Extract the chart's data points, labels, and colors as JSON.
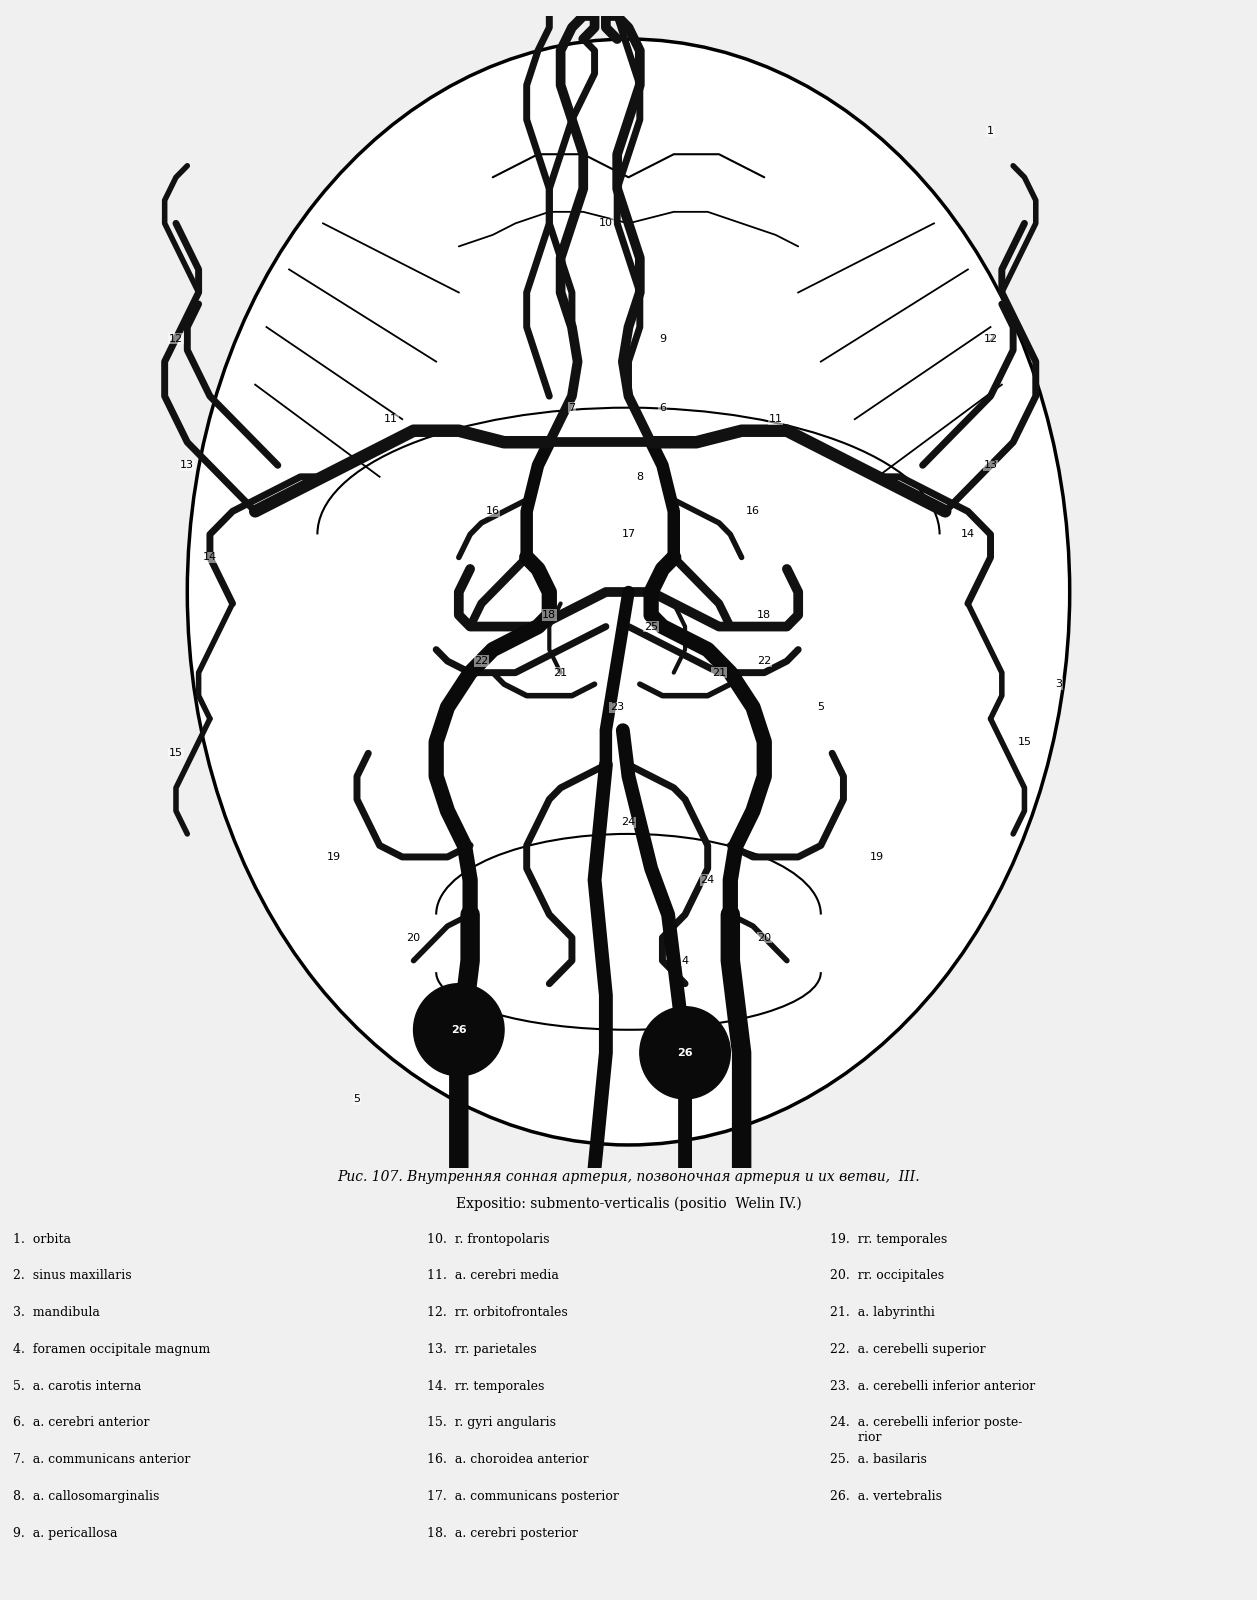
{
  "bg_color": "#f0f0f0",
  "diagram_bg": "#ffffff",
  "vessel_color": "#1a1a1a",
  "line_color": "#111111",
  "title_line1": "Рис. 107. Внутренняя сонная артерия, позвоночная артерия и их ветви,  III.",
  "title_line2": "Expositio: submento-verticalis (positio  Welin IV.)",
  "legend_col1": [
    "1.  orbita",
    "2.  sinus maxillaris",
    "3.  mandibula",
    "4.  foramen occipitale magnum",
    "5.  a. carotis interna",
    "6.  a. cerebri anterior",
    "7.  a. communicans anterior",
    "8.  a. callosomarginalis",
    "9.  a. pericallosa"
  ],
  "legend_col2": [
    "10.  r. frontopolaris",
    "11.  a. cerebri media",
    "12.  rr. orbitofrontales",
    "13.  rr. parietales",
    "14.  rr. temporales",
    "15.  r. gyri angularis",
    "16.  a. choroidea anterior",
    "17.  a. communicans posterior",
    "18.  a. cerebri posterior"
  ],
  "legend_col3": [
    "19.  rr. temporales",
    "20.  rr. occipitales",
    "21.  a. labyrinthi",
    "22.  a. cerebelli superior",
    "23.  a. cerebelli inferior anterior",
    "24.  a. cerebelli inferior poste-\n       rior",
    "25.  a. basilaris",
    "26.  a. vertebralis"
  ]
}
